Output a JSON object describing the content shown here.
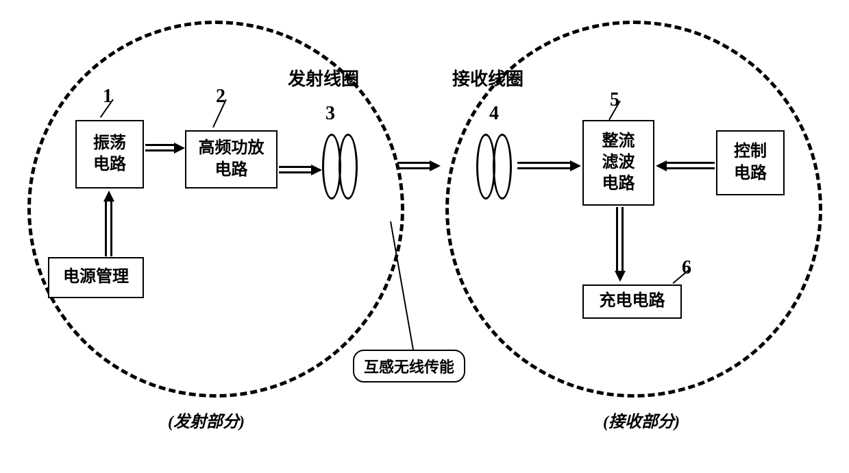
{
  "sections": {
    "left": {
      "label": "(发射部分)"
    },
    "right": {
      "label": "(接收部分)"
    }
  },
  "blocks": {
    "oscillator": {
      "label": "振荡\n电路",
      "num": "1"
    },
    "amplifier": {
      "label": "高频功放\n电路",
      "num": "2"
    },
    "tx_coil": {
      "label": "发射线圈",
      "num": "3"
    },
    "rx_coil": {
      "label": "接收线圈",
      "num": "4"
    },
    "rectifier": {
      "label": "整流\n滤波\n电路",
      "num": "5"
    },
    "charger": {
      "label": "充电电路",
      "num": "6"
    },
    "power_mgmt": {
      "label": "电源管理"
    },
    "control": {
      "label": "控制\n电路"
    }
  },
  "callout": {
    "label": "互感无线传能"
  },
  "style": {
    "background": "#ffffff",
    "border_color": "#000000",
    "dash_color": "#000000",
    "label_fontsize": 24,
    "num_fontsize": 28
  }
}
